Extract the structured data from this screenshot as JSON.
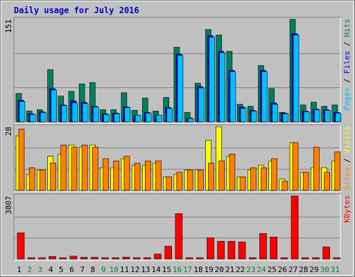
{
  "chart_data": [
    {
      "type": "bar",
      "title": "Daily usage for July 2016",
      "categories": [
        "1",
        "2",
        "3",
        "4",
        "5",
        "6",
        "7",
        "8",
        "9",
        "10",
        "11",
        "12",
        "13",
        "14",
        "15",
        "16",
        "17",
        "18",
        "19",
        "20",
        "21",
        "22",
        "23",
        "24",
        "25",
        "26",
        "27",
        "28",
        "29",
        "30",
        "31"
      ],
      "category_colors": [
        "#000000",
        "#008040",
        "#008040",
        "#000000",
        "#000000",
        "#000000",
        "#000000",
        "#000000",
        "#008040",
        "#008040",
        "#000000",
        "#000000",
        "#000000",
        "#000000",
        "#000000",
        "#008040",
        "#008040",
        "#000000",
        "#000000",
        "#000000",
        "#000000",
        "#000000",
        "#008040",
        "#008040",
        "#000000",
        "#000000",
        "#000000",
        "#000000",
        "#000000",
        "#008040",
        "#008040"
      ],
      "ylim": [
        0,
        151
      ],
      "yticks": [
        151
      ],
      "separator": "/",
      "series": [
        {
          "name": "Hits",
          "color": "#00805c",
          "values": [
            42,
            16,
            18,
            77,
            38,
            45,
            56,
            58,
            18,
            18,
            43,
            17,
            35,
            16,
            36,
            110,
            14,
            57,
            136,
            128,
            104,
            26,
            23,
            83,
            49,
            14,
            151,
            25,
            29,
            23,
            25
          ]
        },
        {
          "name": "Files",
          "color": "#0000ff",
          "values": [
            32,
            12,
            15,
            49,
            25,
            31,
            29,
            23,
            12,
            13,
            22,
            10,
            14,
            10,
            21,
            100,
            6,
            52,
            127,
            104,
            76,
            22,
            17,
            76,
            28,
            13,
            130,
            16,
            19,
            18,
            14
          ]
        },
        {
          "name": "Pages",
          "color": "#00c0ff",
          "values": [
            30,
            11,
            14,
            47,
            24,
            28,
            27,
            22,
            11,
            12,
            21,
            10,
            13,
            10,
            20,
            98,
            5,
            50,
            125,
            102,
            74,
            20,
            16,
            74,
            26,
            12,
            128,
            15,
            18,
            17,
            13
          ]
        }
      ]
    },
    {
      "type": "bar",
      "ylim": [
        0,
        28
      ],
      "yticks": [
        28
      ],
      "separator": "/",
      "series": [
        {
          "name": "Visits",
          "color": "#ffff00",
          "values": [
            24,
            7,
            9,
            15,
            16,
            20,
            19,
            20,
            10,
            10,
            14,
            11,
            11,
            12,
            6,
            7,
            9,
            9,
            22,
            28,
            15,
            6,
            9,
            11,
            13,
            5,
            21,
            8,
            10,
            10,
            13
          ]
        },
        {
          "name": "Sites",
          "color": "#ff8000",
          "values": [
            27,
            10,
            9,
            12,
            20,
            19,
            20,
            19,
            14,
            13,
            15,
            12,
            13,
            13,
            6,
            8,
            9,
            9,
            12,
            13,
            16,
            6,
            10,
            10,
            14,
            4,
            21,
            8,
            19,
            8,
            17
          ]
        }
      ]
    },
    {
      "type": "bar",
      "ylim": [
        0,
        3807
      ],
      "yticks": [
        3807
      ],
      "series": [
        {
          "name": "KBytes",
          "color": "#ff0000",
          "values": [
            1583,
            80,
            80,
            150,
            80,
            170,
            100,
            100,
            80,
            80,
            110,
            80,
            80,
            300,
            770,
            2740,
            80,
            80,
            1280,
            1070,
            1070,
            1030,
            80,
            1540,
            1330,
            80,
            3807,
            80,
            80,
            730,
            80
          ]
        }
      ]
    }
  ]
}
